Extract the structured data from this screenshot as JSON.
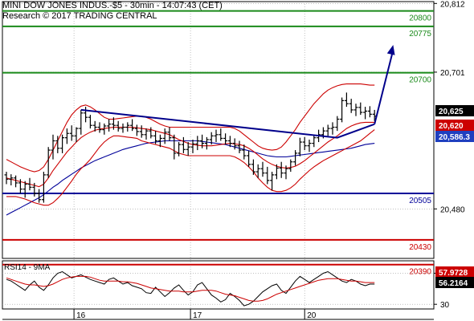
{
  "header": {
    "title": "MINI DOW JONES INDUS.-$5 - 30min - 14:07:43 (CET)",
    "subtitle": "Research © 2017 TRADING CENTRAL"
  },
  "colors": {
    "green": "#1a8a1a",
    "red": "#cc0000",
    "blue": "#000099",
    "navy": "#00008b",
    "price_tag": "#000000",
    "price_tag_text": "#ffffff",
    "red_tag": "#cc0000",
    "blue_tag": "#1f3fbf",
    "grid": "#9a9a9a"
  },
  "chart_data": [
    {
      "type": "candlestick",
      "title": "MINI DOW JONES INDUS.-$5 - 30min - 14:07:43 (CET)",
      "ylim": [
        20400,
        20815
      ],
      "y_ticks": [
        "20,812",
        "20,701",
        "20,480"
      ],
      "y_tick_values": [
        20812,
        20701,
        20480
      ],
      "x_ticks": [
        "16",
        "17",
        "20"
      ],
      "grid": true,
      "levels": [
        {
          "value": 20800,
          "label": "20800",
          "color": "green"
        },
        {
          "value": 20775,
          "label": "20775",
          "color": "green"
        },
        {
          "value": 20700,
          "label": "20700",
          "color": "green"
        },
        {
          "value": 20505,
          "label": "20505",
          "color": "blue"
        },
        {
          "value": 20430,
          "label": "20430",
          "color": "red"
        },
        {
          "value": 20390,
          "label": "20390",
          "color": "red"
        }
      ],
      "price_tags": [
        {
          "value": 20625,
          "label": "20,625",
          "style": "black"
        },
        {
          "value": 20620,
          "label": "20,620",
          "style": "red"
        },
        {
          "value": 20586.3,
          "label": "20,586.3",
          "style": "blue"
        }
      ],
      "candles": [
        [
          20535,
          20540,
          20520,
          20528
        ],
        [
          20528,
          20536,
          20518,
          20530
        ],
        [
          20530,
          20534,
          20515,
          20522
        ],
        [
          20522,
          20528,
          20505,
          20512
        ],
        [
          20512,
          20525,
          20498,
          20520
        ],
        [
          20520,
          20530,
          20510,
          20515
        ],
        [
          20515,
          20522,
          20500,
          20505
        ],
        [
          20505,
          20512,
          20490,
          20495
        ],
        [
          20495,
          20540,
          20490,
          20535
        ],
        [
          20535,
          20580,
          20530,
          20575
        ],
        [
          20575,
          20600,
          20560,
          20590
        ],
        [
          20590,
          20598,
          20570,
          20578
        ],
        [
          20578,
          20600,
          20570,
          20595
        ],
        [
          20595,
          20610,
          20585,
          20602
        ],
        [
          20602,
          20615,
          20590,
          20598
        ],
        [
          20598,
          20612,
          20588,
          20610
        ],
        [
          20610,
          20640,
          20600,
          20635
        ],
        [
          20635,
          20645,
          20620,
          20628
        ],
        [
          20628,
          20632,
          20610,
          20615
        ],
        [
          20615,
          20622,
          20605,
          20612
        ],
        [
          20612,
          20620,
          20603,
          20608
        ],
        [
          20608,
          20618,
          20600,
          20614
        ],
        [
          20614,
          20625,
          20605,
          20617
        ],
        [
          20617,
          20628,
          20608,
          20615
        ],
        [
          20615,
          20622,
          20605,
          20610
        ],
        [
          20610,
          20618,
          20603,
          20612
        ],
        [
          20612,
          20620,
          20605,
          20615
        ],
        [
          20615,
          20625,
          20606,
          20610
        ],
        [
          20610,
          20616,
          20598,
          20605
        ],
        [
          20605,
          20615,
          20595,
          20600
        ],
        [
          20600,
          20610,
          20592,
          20606
        ],
        [
          20606,
          20612,
          20594,
          20598
        ],
        [
          20598,
          20606,
          20585,
          20590
        ],
        [
          20590,
          20600,
          20580,
          20594
        ],
        [
          20594,
          20610,
          20585,
          20604
        ],
        [
          20604,
          20612,
          20590,
          20595
        ],
        [
          20595,
          20600,
          20560,
          20570
        ],
        [
          20570,
          20588,
          20565,
          20584
        ],
        [
          20584,
          20596,
          20570,
          20576
        ],
        [
          20576,
          20588,
          20566,
          20580
        ],
        [
          20580,
          20592,
          20570,
          20585
        ],
        [
          20585,
          20598,
          20575,
          20590
        ],
        [
          20590,
          20600,
          20578,
          20586
        ],
        [
          20586,
          20596,
          20576,
          20592
        ],
        [
          20592,
          20604,
          20584,
          20598
        ],
        [
          20598,
          20608,
          20588,
          20600
        ],
        [
          20600,
          20610,
          20590,
          20594
        ],
        [
          20594,
          20602,
          20584,
          20590
        ],
        [
          20590,
          20598,
          20580,
          20586
        ],
        [
          20586,
          20594,
          20576,
          20582
        ],
        [
          20582,
          20590,
          20570,
          20575
        ],
        [
          20575,
          20584,
          20560,
          20566
        ],
        [
          20566,
          20574,
          20548,
          20552
        ],
        [
          20552,
          20560,
          20535,
          20540
        ],
        [
          20540,
          20552,
          20530,
          20545
        ],
        [
          20545,
          20556,
          20532,
          20538
        ],
        [
          20538,
          20548,
          20520,
          20526
        ],
        [
          20526,
          20540,
          20510,
          20535
        ],
        [
          20535,
          20552,
          20528,
          20546
        ],
        [
          20546,
          20556,
          20530,
          20538
        ],
        [
          20538,
          20550,
          20528,
          20545
        ],
        [
          20545,
          20560,
          20540,
          20556
        ],
        [
          20556,
          20575,
          20550,
          20570
        ],
        [
          20570,
          20595,
          20565,
          20588
        ],
        [
          20588,
          20596,
          20575,
          20582
        ],
        [
          20582,
          20592,
          20572,
          20586
        ],
        [
          20586,
          20600,
          20580,
          20595
        ],
        [
          20595,
          20608,
          20588,
          20600
        ],
        [
          20600,
          20612,
          20594,
          20606
        ],
        [
          20606,
          20616,
          20598,
          20610
        ],
        [
          20610,
          20620,
          20600,
          20612
        ],
        [
          20612,
          20630,
          20606,
          20625
        ],
        [
          20625,
          20660,
          20620,
          20655
        ],
        [
          20655,
          20668,
          20645,
          20650
        ],
        [
          20650,
          20658,
          20635,
          20640
        ],
        [
          20640,
          20650,
          20630,
          20644
        ],
        [
          20644,
          20652,
          20632,
          20636
        ],
        [
          20636,
          20645,
          20625,
          20638
        ],
        [
          20638,
          20646,
          20628,
          20633
        ],
        [
          20633,
          20640,
          20622,
          20630
        ]
      ],
      "series": [
        {
          "name": "",
          "color": "blue",
          "values": [
            20470,
            20474,
            20478,
            20482,
            20486,
            20490,
            20494,
            20498,
            20503,
            20509,
            20515,
            20520,
            20526,
            20531,
            20536,
            20541,
            20546,
            20550,
            20554,
            20558,
            20561,
            20564,
            20567,
            20570,
            20573,
            20576,
            20578,
            20580,
            20582,
            20584,
            20586,
            20587,
            20588,
            20589,
            20590,
            20590,
            20590,
            20590,
            20590,
            20590,
            20590,
            20590,
            20589,
            20588,
            20587,
            20586,
            20585,
            20584,
            20582,
            20580,
            20578,
            20576,
            20574,
            20572,
            20570,
            20568,
            20566,
            20565,
            20564,
            20564,
            20564,
            20565,
            20566,
            20567,
            20568,
            20569,
            20570,
            20571,
            20572,
            20573,
            20574,
            20575,
            20576,
            20577,
            20578,
            20580,
            20582,
            20584,
            20585,
            20586
          ]
        },
        {
          "name": "",
          "color": "red",
          "values": [
            20530,
            20528,
            20526,
            20524,
            20522,
            20520,
            20518,
            20516,
            20520,
            20530,
            20542,
            20552,
            20562,
            20572,
            20580,
            20588,
            20595,
            20600,
            20604,
            20607,
            20609,
            20610,
            20611,
            20612,
            20612,
            20612,
            20612,
            20612,
            20611,
            20610,
            20609,
            20608,
            20606,
            20604,
            20602,
            20600,
            20596,
            20592,
            20589,
            20586,
            20584,
            20583,
            20582,
            20582,
            20582,
            20583,
            20584,
            20585,
            20586,
            20585,
            20584,
            20582,
            20578,
            20573,
            20567,
            20561,
            20556,
            20552,
            20549,
            20547,
            20546,
            20547,
            20549,
            20553,
            20558,
            20564,
            20570,
            20576,
            20582,
            20588,
            20593,
            20598,
            20604,
            20610,
            20614,
            20617,
            20619,
            20620,
            20620,
            20620
          ]
        },
        {
          "name": "",
          "color": "red",
          "values": [
            20560,
            20556,
            20552,
            20548,
            20545,
            20542,
            20540,
            20542,
            20548,
            20560,
            20575,
            20590,
            20605,
            20620,
            20632,
            20640,
            20646,
            20648,
            20645,
            20640,
            20634,
            20628,
            20625,
            20625,
            20626,
            20627,
            20628,
            20629,
            20630,
            20630,
            20628,
            20625,
            20621,
            20617,
            20614,
            20612,
            20612,
            20612,
            20612,
            20612,
            20612,
            20612,
            20612,
            20612,
            20612,
            20612,
            20612,
            20612,
            20612,
            20610,
            20606,
            20600,
            20594,
            20588,
            20582,
            20578,
            20576,
            20575,
            20576,
            20580,
            20588,
            20598,
            20608,
            20620,
            20630,
            20640,
            20650,
            20658,
            20666,
            20672,
            20676,
            20679,
            20681,
            20682,
            20682,
            20682,
            20682,
            20681,
            20680,
            20680
          ]
        },
        {
          "name": "",
          "color": "red",
          "values": [
            20500,
            20500,
            20500,
            20498,
            20496,
            20493,
            20490,
            20488,
            20486,
            20486,
            20490,
            20497,
            20505,
            20515,
            20525,
            20536,
            20545,
            20552,
            20560,
            20570,
            20580,
            20588,
            20594,
            20598,
            20598,
            20597,
            20596,
            20595,
            20594,
            20590,
            20588,
            20586,
            20584,
            20582,
            20580,
            20578,
            20574,
            20570,
            20568,
            20566,
            20566,
            20566,
            20566,
            20566,
            20566,
            20566,
            20566,
            20566,
            20566,
            20564,
            20560,
            20555,
            20548,
            20540,
            20530,
            20522,
            20515,
            20510,
            20508,
            20508,
            20510,
            20514,
            20520,
            20528,
            20535,
            20542,
            20548,
            20553,
            20558,
            20562,
            20566,
            20570,
            20574,
            20578,
            20582,
            20586,
            20590,
            20596,
            20602,
            20608
          ]
        }
      ],
      "trendline": {
        "points": [
          [
            16,
            20640
          ],
          [
            71,
            20595
          ],
          [
            79,
            20617
          ]
        ]
      },
      "forecast_arrow": {
        "points": [
          [
            79,
            20617
          ],
          [
            83,
            20745
          ]
        ]
      }
    },
    {
      "type": "line",
      "title": "RSI14 - 9MA",
      "ylim": [
        24,
        86
      ],
      "y_ticks": [
        "70",
        "30"
      ],
      "y_tick_values": [
        70,
        30
      ],
      "value_tags": [
        {
          "value": 57.9728,
          "label": "57.9728",
          "style": "red"
        },
        {
          "value": 56.2164,
          "label": "56.2164",
          "style": "black"
        }
      ],
      "series": [
        {
          "name": "RSI14",
          "color": "black",
          "values": [
            62,
            60,
            56,
            52,
            48,
            55,
            60,
            52,
            48,
            55,
            64,
            70,
            72,
            68,
            64,
            66,
            68,
            65,
            62,
            60,
            58,
            56,
            62,
            64,
            60,
            56,
            58,
            54,
            52,
            50,
            45,
            44,
            52,
            46,
            40,
            45,
            51,
            55,
            48,
            42,
            46,
            55,
            58,
            50,
            42,
            38,
            33,
            36,
            44,
            40,
            35,
            28,
            30,
            34,
            40,
            46,
            50,
            54,
            56,
            48,
            44,
            52,
            60,
            66,
            62,
            58,
            62,
            66,
            70,
            72,
            68,
            64,
            60,
            58,
            62,
            60,
            56,
            54,
            56,
            56
          ]
        },
        {
          "name": "9MA",
          "color": "red",
          "values": [
            64,
            62,
            60,
            58,
            56,
            55,
            55,
            54,
            53,
            54,
            56,
            59,
            62,
            64,
            65,
            66,
            66,
            66,
            65,
            63,
            61,
            60,
            60,
            60,
            60,
            59,
            59,
            58,
            57,
            55,
            53,
            51,
            50,
            49,
            48,
            47,
            47,
            47,
            46,
            46,
            46,
            47,
            48,
            48,
            48,
            47,
            45,
            43,
            42,
            41,
            39,
            37,
            35,
            34,
            34,
            35,
            37,
            40,
            43,
            45,
            47,
            49,
            51,
            53,
            55,
            57,
            59,
            61,
            62,
            63,
            63,
            63,
            62,
            61,
            60,
            60,
            59,
            58,
            58,
            58
          ]
        }
      ]
    }
  ]
}
